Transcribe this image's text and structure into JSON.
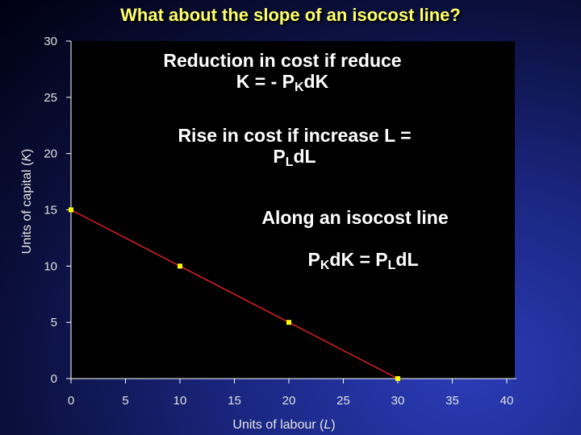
{
  "slide": {
    "title": "What about the slope of an isocost line?"
  },
  "annotations": {
    "reduction_line1": "Reduction in cost if reduce",
    "reduction_line2_pre": "K = - P",
    "reduction_line2_sub": "K",
    "reduction_line2_post": "dK",
    "rise_line1": "Rise in cost if increase L =",
    "rise_line2_pre": "P",
    "rise_line2_sub": "L",
    "rise_line2_post": "dL",
    "along": "Along an isocost line",
    "eq_p1": "P",
    "eq_sub1": "K",
    "eq_mid": "dK = P",
    "eq_sub2": "L",
    "eq_end": "dL"
  },
  "colors": {
    "plot_bg": "#000000",
    "line": "#e02020",
    "marker": "#ffff00",
    "title": "#ffff66"
  },
  "chart_data": {
    "type": "line",
    "title": "",
    "xlabel_pre": "Units of labour (",
    "xlabel_var": "L",
    "xlabel_post": ")",
    "ylabel_pre": "Units of capital (",
    "ylabel_var": "K",
    "ylabel_post": ")",
    "xlim": [
      0,
      40
    ],
    "ylim": [
      0,
      30
    ],
    "x_ticks": [
      0,
      5,
      10,
      15,
      20,
      25,
      30,
      35,
      40
    ],
    "y_ticks": [
      0,
      5,
      10,
      15,
      20,
      25,
      30
    ],
    "grid": false,
    "series": [
      {
        "x": [
          0,
          10,
          20,
          30
        ],
        "y": [
          15,
          10,
          5,
          0
        ]
      }
    ]
  }
}
